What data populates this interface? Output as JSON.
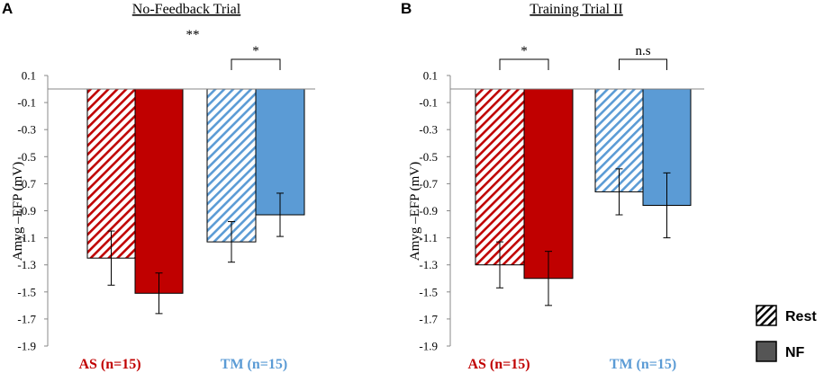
{
  "colors": {
    "as": "#c00000",
    "tm": "#5b9bd5",
    "axis": "#888888",
    "legend_nf": "#555555"
  },
  "legend": {
    "rest_label": "Rest",
    "nf_label": "NF"
  },
  "chart_data": [
    {
      "type": "bar",
      "panel": "A",
      "title": "No-Feedback Trial",
      "ylabel": "Amyg –EFP (mV)",
      "xlabel": "",
      "ylim": [
        -1.9,
        0.1
      ],
      "yticks": [
        "0.1",
        "-0.1",
        "-0.3",
        "-0.5",
        "-0.7",
        "-0.9",
        "-1.1",
        "-1.3",
        "-1.5",
        "-1.7",
        "-1.9"
      ],
      "categories": [
        "AS (n=15)",
        "TM (n=15)"
      ],
      "series": [
        {
          "name": "Rest",
          "values": [
            -1.25,
            -1.13
          ],
          "errors": [
            0.2,
            0.15
          ]
        },
        {
          "name": "NF",
          "values": [
            -1.51,
            -0.93
          ],
          "errors": [
            0.15,
            0.16
          ]
        }
      ],
      "annotations": [
        {
          "label": "**",
          "between": "AS vs TM",
          "bracket": false
        },
        {
          "label": "*",
          "group": "TM (n=15)",
          "bracket": true
        }
      ]
    },
    {
      "type": "bar",
      "panel": "B",
      "title": "Training Trial II",
      "ylabel": "Amyg –EFP (mV)",
      "xlabel": "",
      "ylim": [
        -1.9,
        0.1
      ],
      "yticks": [
        "0.1",
        "-0.1",
        "-0.3",
        "-0.5",
        "-0.7",
        "-0.9",
        "-1.1",
        "-1.3",
        "-1.5",
        "-1.7",
        "-1.9"
      ],
      "categories": [
        "AS (n=15)",
        "TM (n=15)"
      ],
      "series": [
        {
          "name": "Rest",
          "values": [
            -1.3,
            -0.76
          ],
          "errors": [
            0.17,
            0.17
          ]
        },
        {
          "name": "NF",
          "values": [
            -1.4,
            -0.86
          ],
          "errors": [
            0.2,
            0.24
          ]
        }
      ],
      "annotations": [
        {
          "label": "*",
          "group": "AS (n=15)",
          "bracket": true
        },
        {
          "label": "n.s",
          "group": "TM (n=15)",
          "bracket": true
        }
      ]
    }
  ]
}
